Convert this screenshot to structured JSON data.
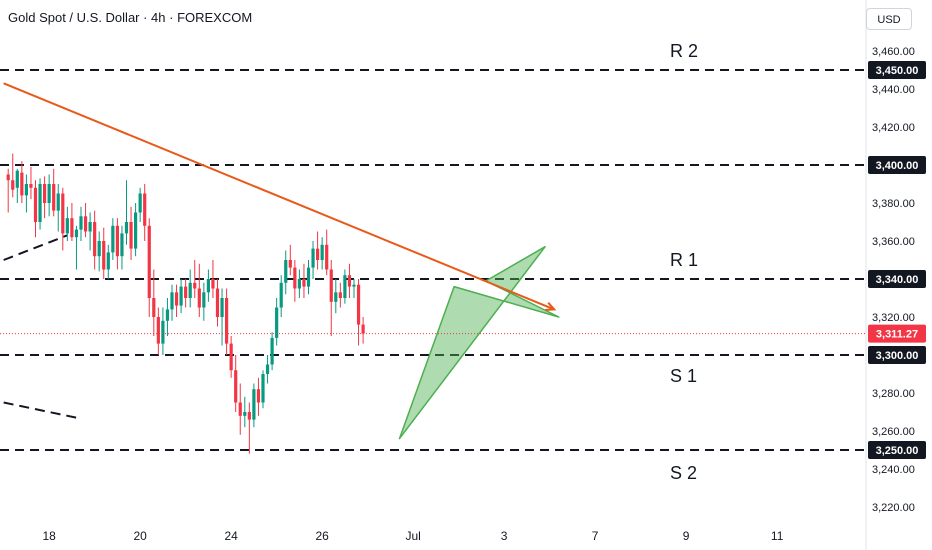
{
  "header": {
    "title": "Gold Spot / U.S. Dollar · 4h · FOREXCOM",
    "currency_button": "USD"
  },
  "colors": {
    "up": "#089981",
    "down": "#f23645",
    "trend": "#e8591a",
    "current": "#f23645",
    "pattern": "#4caf50"
  },
  "chart_data": {
    "type": "candlestick",
    "title": "Gold Spot / U.S. Dollar · 4h · FOREXCOM",
    "ylim": [
      3210,
      3475
    ],
    "y_ticks": [
      "3,220.00",
      "3,240.00",
      "3,260.00",
      "3,280.00",
      "3,320.00",
      "3,360.00",
      "3,380.00",
      "3,420.00",
      "3,440.00",
      "3,460.00"
    ],
    "y_tick_values": [
      3220,
      3240,
      3260,
      3280,
      3320,
      3360,
      3380,
      3420,
      3440,
      3460
    ],
    "x_ticks": [
      {
        "label": "18",
        "t": 9
      },
      {
        "label": "20",
        "t": 29
      },
      {
        "label": "24",
        "t": 49
      },
      {
        "label": "26",
        "t": 69
      },
      {
        "label": "Jul",
        "t": 89
      },
      {
        "label": "3",
        "t": 109
      },
      {
        "label": "7",
        "t": 129
      },
      {
        "label": "9",
        "t": 149
      },
      {
        "label": "11",
        "t": 169
      }
    ],
    "levels": [
      {
        "name": "R 2",
        "value": 3450,
        "tag": "3,450.00"
      },
      {
        "name": "R 1",
        "value": 3340,
        "tag": "3,340.00"
      },
      {
        "name": "S 1",
        "value": 3300,
        "tag": "3,300.00"
      },
      {
        "name": "S 2",
        "value": 3250,
        "tag": "3,250.00"
      },
      {
        "name": "",
        "value": 3400,
        "tag": "3,400.00"
      }
    ],
    "current_price": {
      "value": 3311.27,
      "tag": "3,311.27"
    },
    "trendlines": [
      {
        "kind": "descending-resistance",
        "points": [
          [
            -1,
            3443
          ],
          [
            120,
            3324
          ]
        ]
      }
    ],
    "dashed_guides": [
      {
        "points": [
          [
            -1,
            3350
          ],
          [
            13,
            3363
          ]
        ]
      },
      {
        "points": [
          [
            -1,
            3275
          ],
          [
            15,
            3267
          ]
        ]
      }
    ],
    "pattern": {
      "kind": "rising-wedge-arrow",
      "points": [
        [
          86,
          3256
        ],
        [
          118,
          3357
        ],
        [
          105,
          3339
        ],
        [
          121,
          3320
        ],
        [
          98,
          3336
        ]
      ]
    },
    "candles": [
      [
        0,
        3395,
        3398,
        3375,
        3392
      ],
      [
        1,
        3392,
        3406,
        3383,
        3387
      ],
      [
        2,
        3388,
        3398,
        3380,
        3397
      ],
      [
        3,
        3396,
        3402,
        3380,
        3384
      ],
      [
        4,
        3384,
        3395,
        3375,
        3390
      ],
      [
        5,
        3390,
        3399,
        3382,
        3388
      ],
      [
        6,
        3388,
        3392,
        3362,
        3370
      ],
      [
        7,
        3370,
        3393,
        3366,
        3390
      ],
      [
        8,
        3390,
        3394,
        3372,
        3380
      ],
      [
        9,
        3380,
        3395,
        3373,
        3390
      ],
      [
        10,
        3390,
        3398,
        3373,
        3376
      ],
      [
        11,
        3376,
        3390,
        3365,
        3385
      ],
      [
        12,
        3385,
        3388,
        3355,
        3364
      ],
      [
        13,
        3364,
        3378,
        3360,
        3372
      ],
      [
        14,
        3372,
        3380,
        3360,
        3362
      ],
      [
        15,
        3362,
        3368,
        3345,
        3366
      ],
      [
        16,
        3366,
        3378,
        3360,
        3373
      ],
      [
        17,
        3373,
        3380,
        3362,
        3365
      ],
      [
        18,
        3365,
        3375,
        3355,
        3370
      ],
      [
        19,
        3370,
        3376,
        3345,
        3352
      ],
      [
        20,
        3352,
        3365,
        3344,
        3360
      ],
      [
        21,
        3360,
        3367,
        3340,
        3345
      ],
      [
        22,
        3345,
        3358,
        3340,
        3354
      ],
      [
        23,
        3354,
        3372,
        3350,
        3368
      ],
      [
        24,
        3368,
        3372,
        3345,
        3352
      ],
      [
        25,
        3352,
        3368,
        3345,
        3364
      ],
      [
        26,
        3364,
        3392,
        3358,
        3370
      ],
      [
        27,
        3370,
        3378,
        3350,
        3356
      ],
      [
        28,
        3356,
        3380,
        3352,
        3375
      ],
      [
        29,
        3375,
        3388,
        3370,
        3385
      ],
      [
        30,
        3385,
        3390,
        3360,
        3368
      ],
      [
        31,
        3368,
        3372,
        3320,
        3330
      ],
      [
        32,
        3330,
        3345,
        3310,
        3320
      ],
      [
        33,
        3320,
        3325,
        3300,
        3306
      ],
      [
        34,
        3306,
        3325,
        3300,
        3318
      ],
      [
        35,
        3318,
        3330,
        3310,
        3324
      ],
      [
        36,
        3324,
        3337,
        3318,
        3333
      ],
      [
        37,
        3333,
        3337,
        3320,
        3326
      ],
      [
        38,
        3326,
        3340,
        3322,
        3336
      ],
      [
        39,
        3336,
        3340,
        3325,
        3330
      ],
      [
        40,
        3330,
        3345,
        3325,
        3338
      ],
      [
        41,
        3338,
        3350,
        3330,
        3335
      ],
      [
        42,
        3335,
        3348,
        3320,
        3325
      ],
      [
        43,
        3325,
        3338,
        3318,
        3333
      ],
      [
        44,
        3333,
        3345,
        3328,
        3340
      ],
      [
        45,
        3340,
        3350,
        3330,
        3335
      ],
      [
        46,
        3335,
        3340,
        3315,
        3320
      ],
      [
        47,
        3320,
        3335,
        3305,
        3330
      ],
      [
        48,
        3330,
        3335,
        3300,
        3306
      ],
      [
        49,
        3306,
        3310,
        3288,
        3292
      ],
      [
        50,
        3292,
        3300,
        3270,
        3275
      ],
      [
        51,
        3275,
        3285,
        3258,
        3268
      ],
      [
        52,
        3268,
        3278,
        3262,
        3270
      ],
      [
        53,
        3270,
        3275,
        3248,
        3266
      ],
      [
        54,
        3266,
        3285,
        3262,
        3282
      ],
      [
        55,
        3282,
        3288,
        3268,
        3275
      ],
      [
        56,
        3275,
        3292,
        3272,
        3290
      ],
      [
        57,
        3290,
        3300,
        3285,
        3295
      ],
      [
        58,
        3295,
        3312,
        3292,
        3309
      ],
      [
        59,
        3309,
        3330,
        3305,
        3325
      ],
      [
        60,
        3325,
        3342,
        3320,
        3338
      ],
      [
        61,
        3338,
        3355,
        3332,
        3350
      ],
      [
        62,
        3350,
        3358,
        3342,
        3346
      ],
      [
        63,
        3346,
        3350,
        3328,
        3335
      ],
      [
        64,
        3335,
        3345,
        3330,
        3340
      ],
      [
        65,
        3340,
        3348,
        3330,
        3336
      ],
      [
        66,
        3336,
        3350,
        3332,
        3346
      ],
      [
        67,
        3346,
        3360,
        3340,
        3356
      ],
      [
        68,
        3356,
        3365,
        3345,
        3350
      ],
      [
        69,
        3350,
        3362,
        3345,
        3358
      ],
      [
        70,
        3358,
        3366,
        3342,
        3345
      ],
      [
        71,
        3345,
        3350,
        3310,
        3328
      ],
      [
        72,
        3328,
        3340,
        3322,
        3333
      ],
      [
        73,
        3333,
        3338,
        3325,
        3330
      ],
      [
        74,
        3330,
        3345,
        3327,
        3342
      ],
      [
        75,
        3342,
        3348,
        3330,
        3336
      ],
      [
        76,
        3336,
        3340,
        3330,
        3337
      ],
      [
        77,
        3337,
        3340,
        3305,
        3316
      ],
      [
        78,
        3316,
        3320,
        3306,
        3311.27
      ]
    ]
  }
}
